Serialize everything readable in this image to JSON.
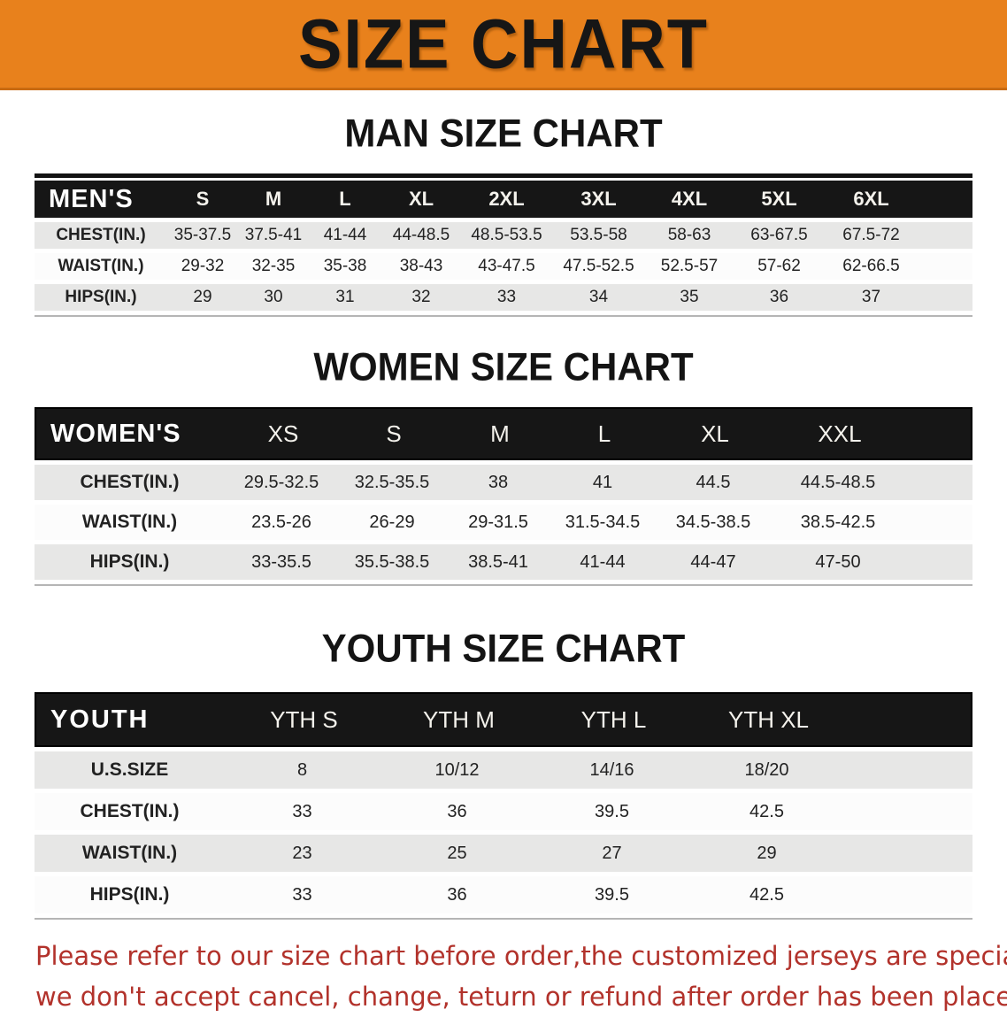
{
  "banner": {
    "title": "SIZE CHART",
    "bg_color": "#e8811c",
    "text_color": "#161616"
  },
  "sections": [
    {
      "heading": "MAN SIZE CHART",
      "table": {
        "header_label": "MEN'S",
        "columns": [
          "S",
          "M",
          "L",
          "XL",
          "2XL",
          "3XL",
          "4XL",
          "5XL",
          "6XL"
        ],
        "rows": [
          {
            "label": "CHEST(IN.)",
            "values": [
              "35-37.5",
              "37.5-41",
              "41-44",
              "44-48.5",
              "48.5-53.5",
              "53.5-58",
              "58-63",
              "63-67.5",
              "67.5-72"
            ]
          },
          {
            "label": "WAIST(IN.)",
            "values": [
              "29-32",
              "32-35",
              "35-38",
              "38-43",
              "43-47.5",
              "47.5-52.5",
              "52.5-57",
              "57-62",
              "62-66.5"
            ]
          },
          {
            "label": "HIPS(IN.)",
            "values": [
              "29",
              "30",
              "31",
              "32",
              "33",
              "34",
              "35",
              "36",
              "37"
            ]
          }
        ]
      }
    },
    {
      "heading": "WOMEN SIZE CHART",
      "table": {
        "header_label": "WOMEN'S",
        "columns": [
          "XS",
          "S",
          "M",
          "L",
          "XL",
          "XXL"
        ],
        "rows": [
          {
            "label": "CHEST(IN.)",
            "values": [
              "29.5-32.5",
              "32.5-35.5",
              "38",
              "41",
              "44.5",
              "44.5-48.5"
            ]
          },
          {
            "label": "WAIST(IN.)",
            "values": [
              "23.5-26",
              "26-29",
              "29-31.5",
              "31.5-34.5",
              "34.5-38.5",
              "38.5-42.5"
            ]
          },
          {
            "label": "HIPS(IN.)",
            "values": [
              "33-35.5",
              "35.5-38.5",
              "38.5-41",
              "41-44",
              "44-47",
              "47-50"
            ]
          }
        ]
      }
    },
    {
      "heading": "YOUTH SIZE CHART",
      "table": {
        "header_label": "YOUTH",
        "columns": [
          "YTH S",
          "YTH M",
          "YTH L",
          "YTH XL"
        ],
        "rows": [
          {
            "label": "U.S.SIZE",
            "values": [
              "8",
              "10/12",
              "14/16",
              "18/20"
            ]
          },
          {
            "label": "CHEST(IN.)",
            "values": [
              "33",
              "36",
              "39.5",
              "42.5"
            ]
          },
          {
            "label": "WAIST(IN.)",
            "values": [
              "23",
              "25",
              "27",
              "29"
            ]
          },
          {
            "label": "HIPS(IN.)",
            "values": [
              "33",
              "36",
              "39.5",
              "42.5"
            ]
          }
        ]
      }
    }
  ],
  "disclaimer": {
    "line1": "Please refer to our size chart before order,the customized jerseys are special products,",
    "line2": "we don't accept cancel, change, teturn or refund after order has been placed!",
    "color": "#b2322b"
  }
}
